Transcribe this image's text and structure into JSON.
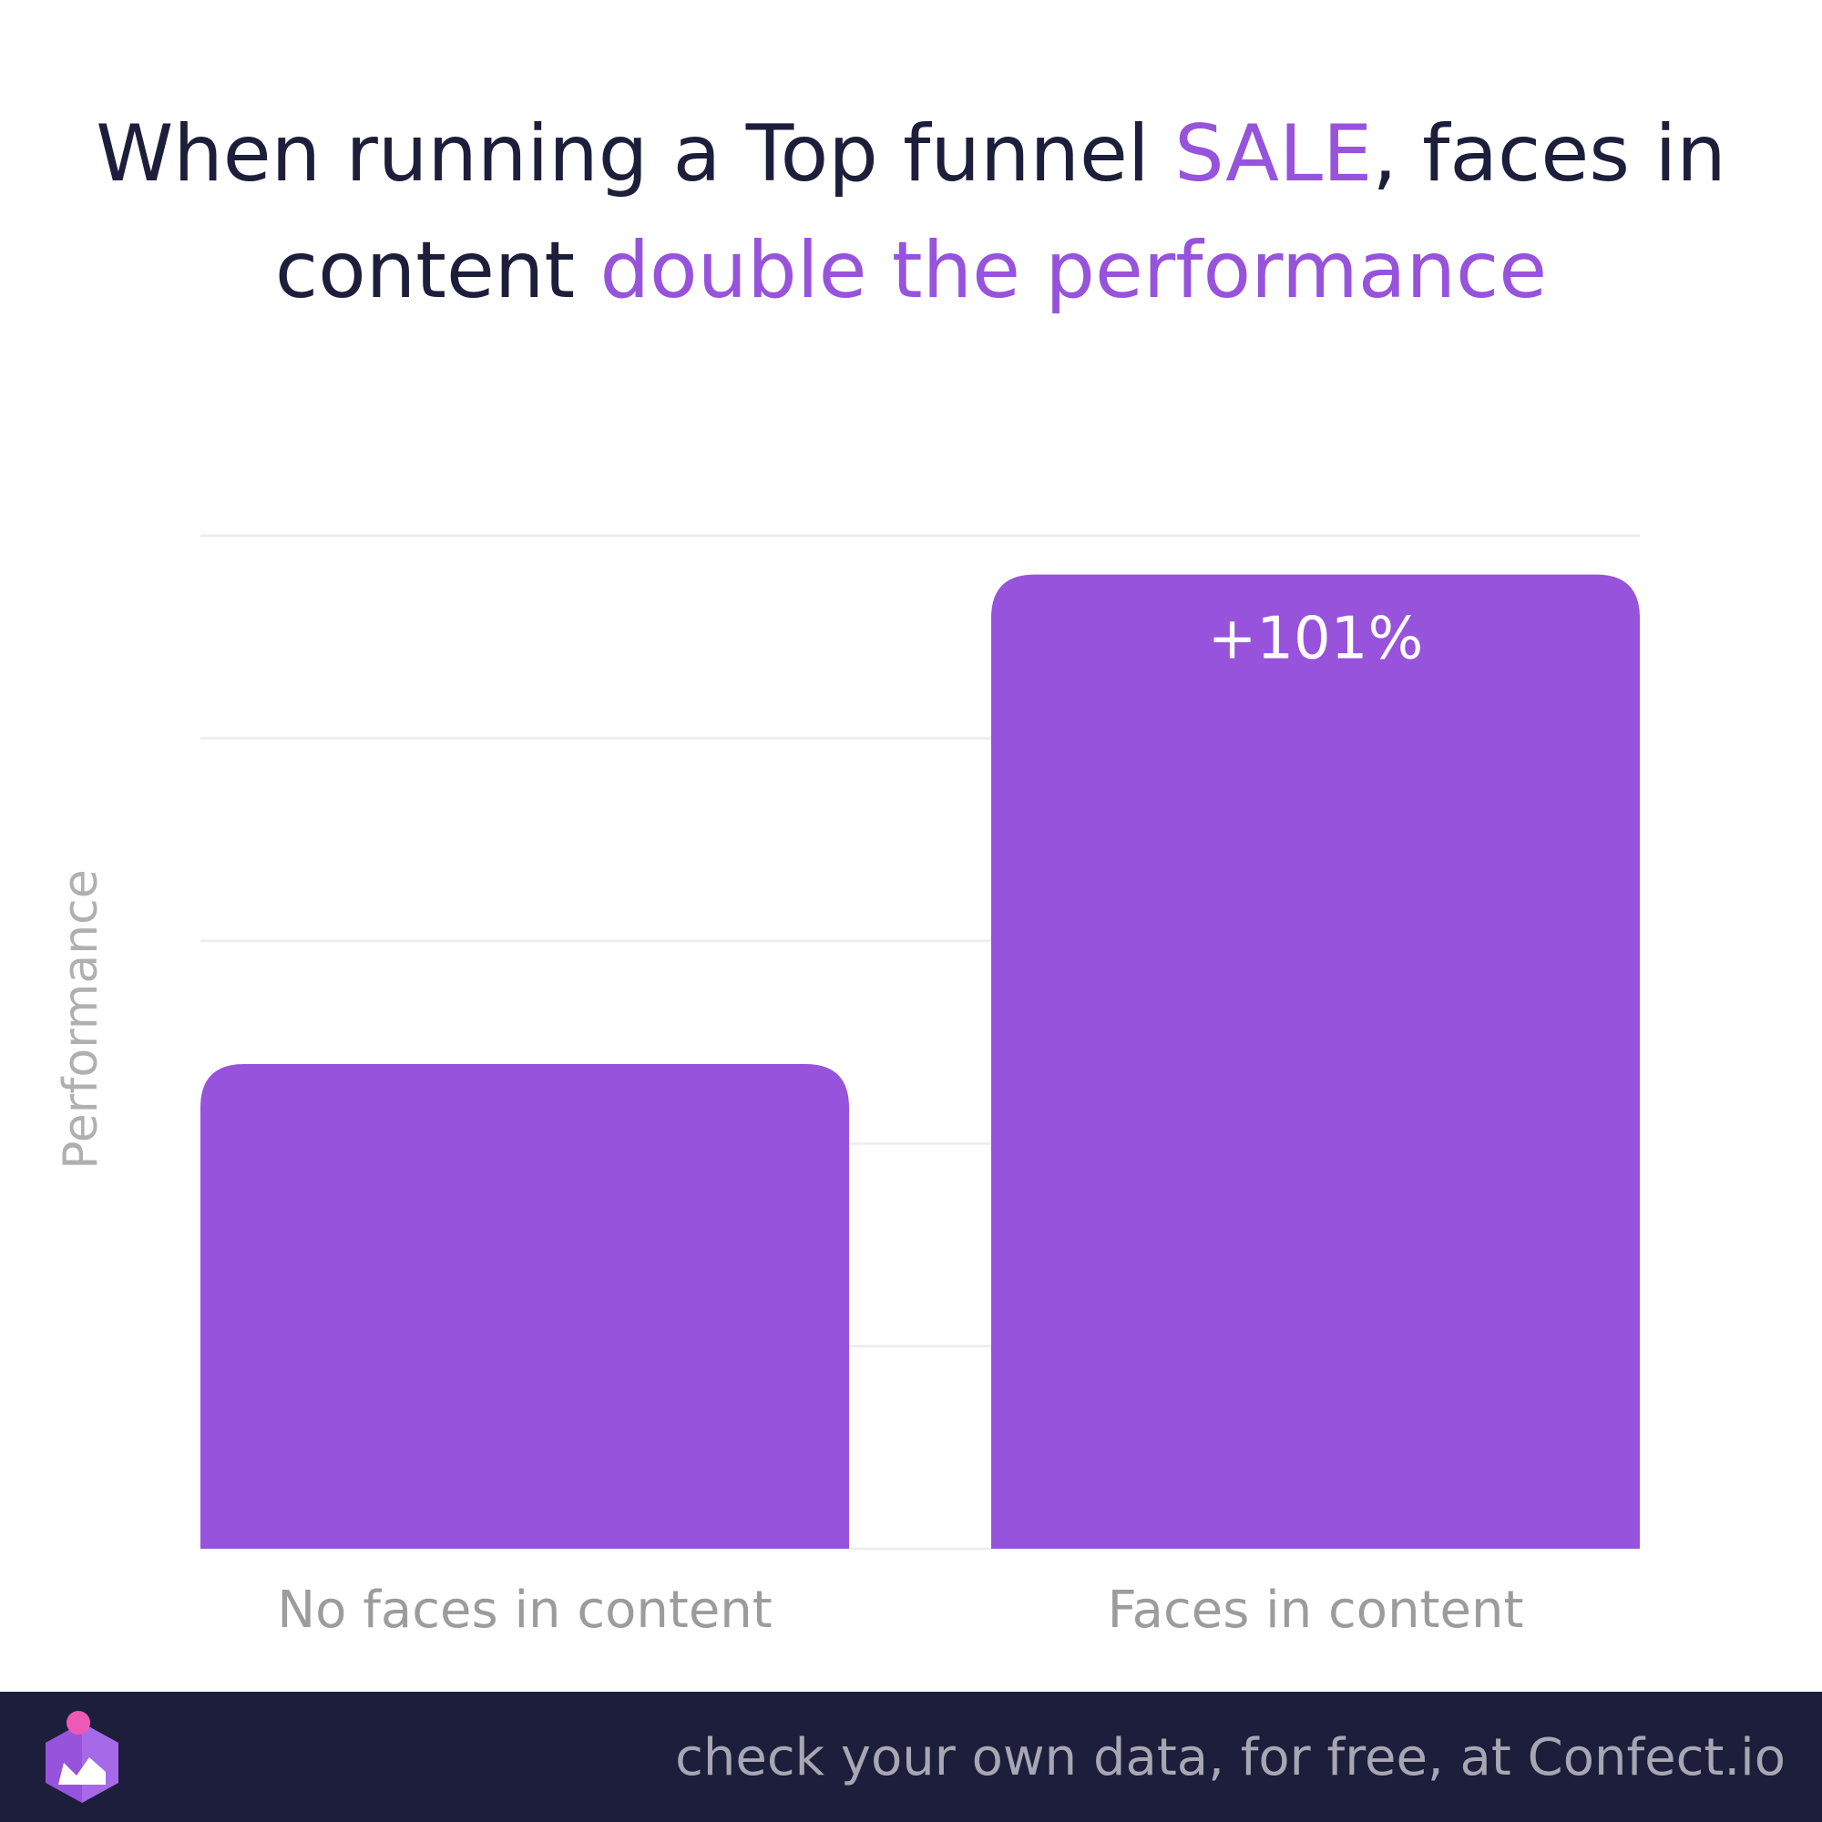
{
  "title": {
    "part1": "When running a Top funnel ",
    "part2": "SALE",
    "part3": ", faces in content ",
    "part4": "double the performance"
  },
  "footer": {
    "text": "check your own data, for free, at Confect.io",
    "logo_icon": "confect-logo-icon"
  },
  "colors": {
    "accent": "#9753dc",
    "title": "#1c1e3b",
    "footer_bg": "#1c1e3b",
    "pink_dot": "#ee59b6",
    "gridline": "#eeeeee",
    "muted_text": "#9c9c9c"
  },
  "chart_data": {
    "type": "bar",
    "categories": [
      "No faces in content",
      "Faces in content"
    ],
    "values": [
      1,
      2.01
    ],
    "data_labels": [
      "",
      "+101%"
    ],
    "xlabel": "",
    "ylabel": "Performance",
    "ylim": [
      0,
      2.09
    ],
    "grid": true,
    "legend": "none"
  }
}
